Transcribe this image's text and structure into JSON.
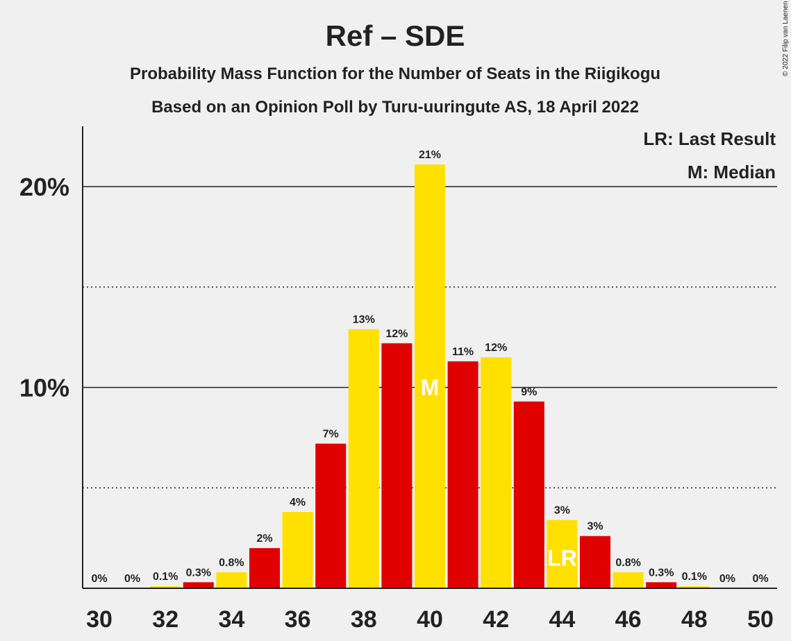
{
  "copyright": "© 2022 Filip van Laenen",
  "chart_data": {
    "type": "bar",
    "title": "Ref – SDE",
    "subtitle": "Probability Mass Function for the Number of Seats in the Riigikogu",
    "subtitle2": "Based on an Opinion Poll by Turu-uuringute AS, 18 April 2022",
    "legend": {
      "last_result": "LR: Last Result",
      "median": "M: Median"
    },
    "x": [
      30,
      31,
      32,
      33,
      34,
      35,
      36,
      37,
      38,
      39,
      40,
      41,
      42,
      43,
      44,
      45,
      46,
      47,
      48,
      49,
      50
    ],
    "values": [
      0,
      0,
      0.1,
      0.3,
      0.8,
      2,
      3.8,
      7.2,
      12.9,
      12.2,
      21.1,
      11.3,
      11.5,
      9.3,
      3.4,
      2.6,
      0.8,
      0.3,
      0.1,
      0,
      0
    ],
    "labels": [
      "0%",
      "0%",
      "0.1%",
      "0.3%",
      "0.8%",
      "2%",
      "4%",
      "7%",
      "13%",
      "12%",
      "21%",
      "11%",
      "12%",
      "9%",
      "3%",
      "3%",
      "0.8%",
      "0.3%",
      "0.1%",
      "0%",
      "0%"
    ],
    "colors": [
      "#FFE000",
      "#E00000",
      "#FFE000",
      "#E00000",
      "#FFE000",
      "#E00000",
      "#FFE000",
      "#E00000",
      "#FFE000",
      "#E00000",
      "#FFE000",
      "#E00000",
      "#FFE000",
      "#E00000",
      "#FFE000",
      "#E00000",
      "#FFE000",
      "#E00000",
      "#FFE000",
      "#E00000",
      "#FFE000"
    ],
    "xticks": [
      "30",
      "32",
      "34",
      "36",
      "38",
      "40",
      "42",
      "44",
      "46",
      "48",
      "50"
    ],
    "yticks": [
      "10%",
      "20%"
    ],
    "ylim": [
      0,
      23
    ],
    "median": {
      "x": 40,
      "label": "M"
    },
    "last_result": {
      "x": 44,
      "label": "LR"
    },
    "grid": {
      "solid": [
        10,
        20
      ],
      "dotted": [
        5,
        15
      ]
    }
  }
}
